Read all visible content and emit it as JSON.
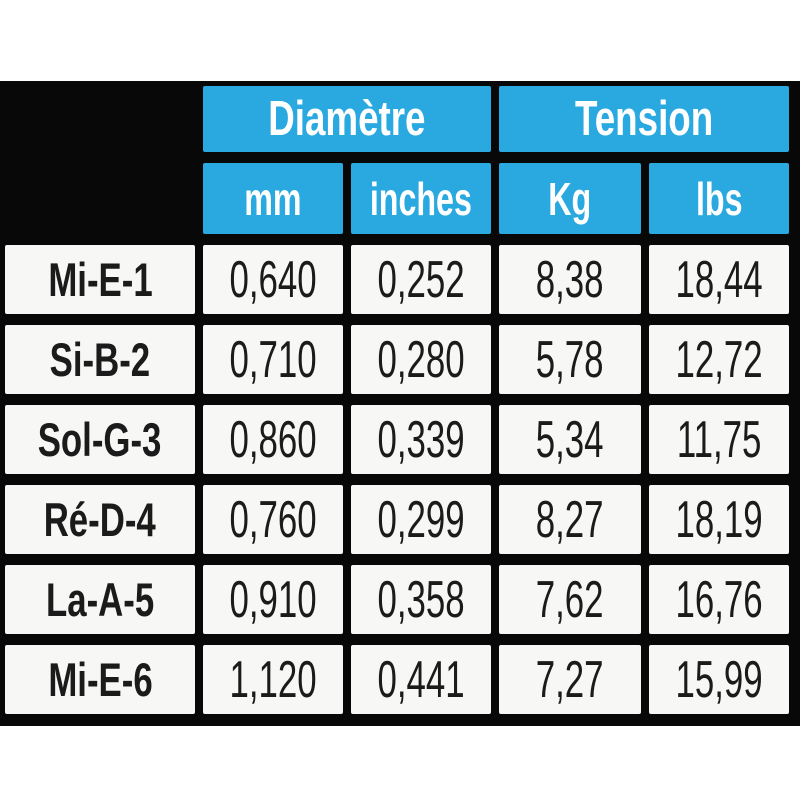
{
  "colors": {
    "accent_blue": "#29A9E0",
    "band_black": "#080808",
    "cell_white": "#F7F7F5",
    "text_dark": "#1B1B1B",
    "header_text": "#FFFFFF"
  },
  "table": {
    "group_headers": [
      {
        "label": "Diamètre"
      },
      {
        "label": "Tension"
      }
    ],
    "sub_headers": [
      "mm",
      "inches",
      "Kg",
      "lbs"
    ],
    "rows": [
      {
        "label": "Mi-E-1",
        "values": [
          "0,640",
          "0,252",
          "8,38",
          "18,44"
        ]
      },
      {
        "label": "Si-B-2",
        "values": [
          "0,710",
          "0,280",
          "5,78",
          "12,72"
        ]
      },
      {
        "label": "Sol-G-3",
        "values": [
          "0,860",
          "0,339",
          "5,34",
          "11,75"
        ]
      },
      {
        "label": "Ré-D-4",
        "values": [
          "0,760",
          "0,299",
          "8,27",
          "18,19"
        ]
      },
      {
        "label": "La-A-5",
        "values": [
          "0,910",
          "0,358",
          "7,62",
          "16,76"
        ]
      },
      {
        "label": "Mi-E-6",
        "values": [
          "1,120",
          "0,441",
          "7,27",
          "15,99"
        ]
      }
    ]
  },
  "chart_data": {
    "type": "table",
    "title": "",
    "column_groups": [
      {
        "label": "Diamètre",
        "columns": [
          "mm",
          "inches"
        ]
      },
      {
        "label": "Tension",
        "columns": [
          "Kg",
          "lbs"
        ]
      }
    ],
    "columns": [
      "String",
      "mm",
      "inches",
      "Kg",
      "lbs"
    ],
    "rows": [
      [
        "Mi-E-1",
        0.64,
        0.252,
        8.38,
        18.44
      ],
      [
        "Si-B-2",
        0.71,
        0.28,
        5.78,
        12.72
      ],
      [
        "Sol-G-3",
        0.86,
        0.339,
        5.34,
        11.75
      ],
      [
        "Ré-D-4",
        0.76,
        0.299,
        8.27,
        18.19
      ],
      [
        "La-A-5",
        0.91,
        0.358,
        7.62,
        16.76
      ],
      [
        "Mi-E-6",
        1.12,
        0.441,
        7.27,
        15.99
      ]
    ],
    "layout_hints": {
      "decimal_separator": "comma",
      "header_fill": "#29A9E0",
      "grid_background": "#080808",
      "cell_fill": "#F7F7F5"
    }
  }
}
